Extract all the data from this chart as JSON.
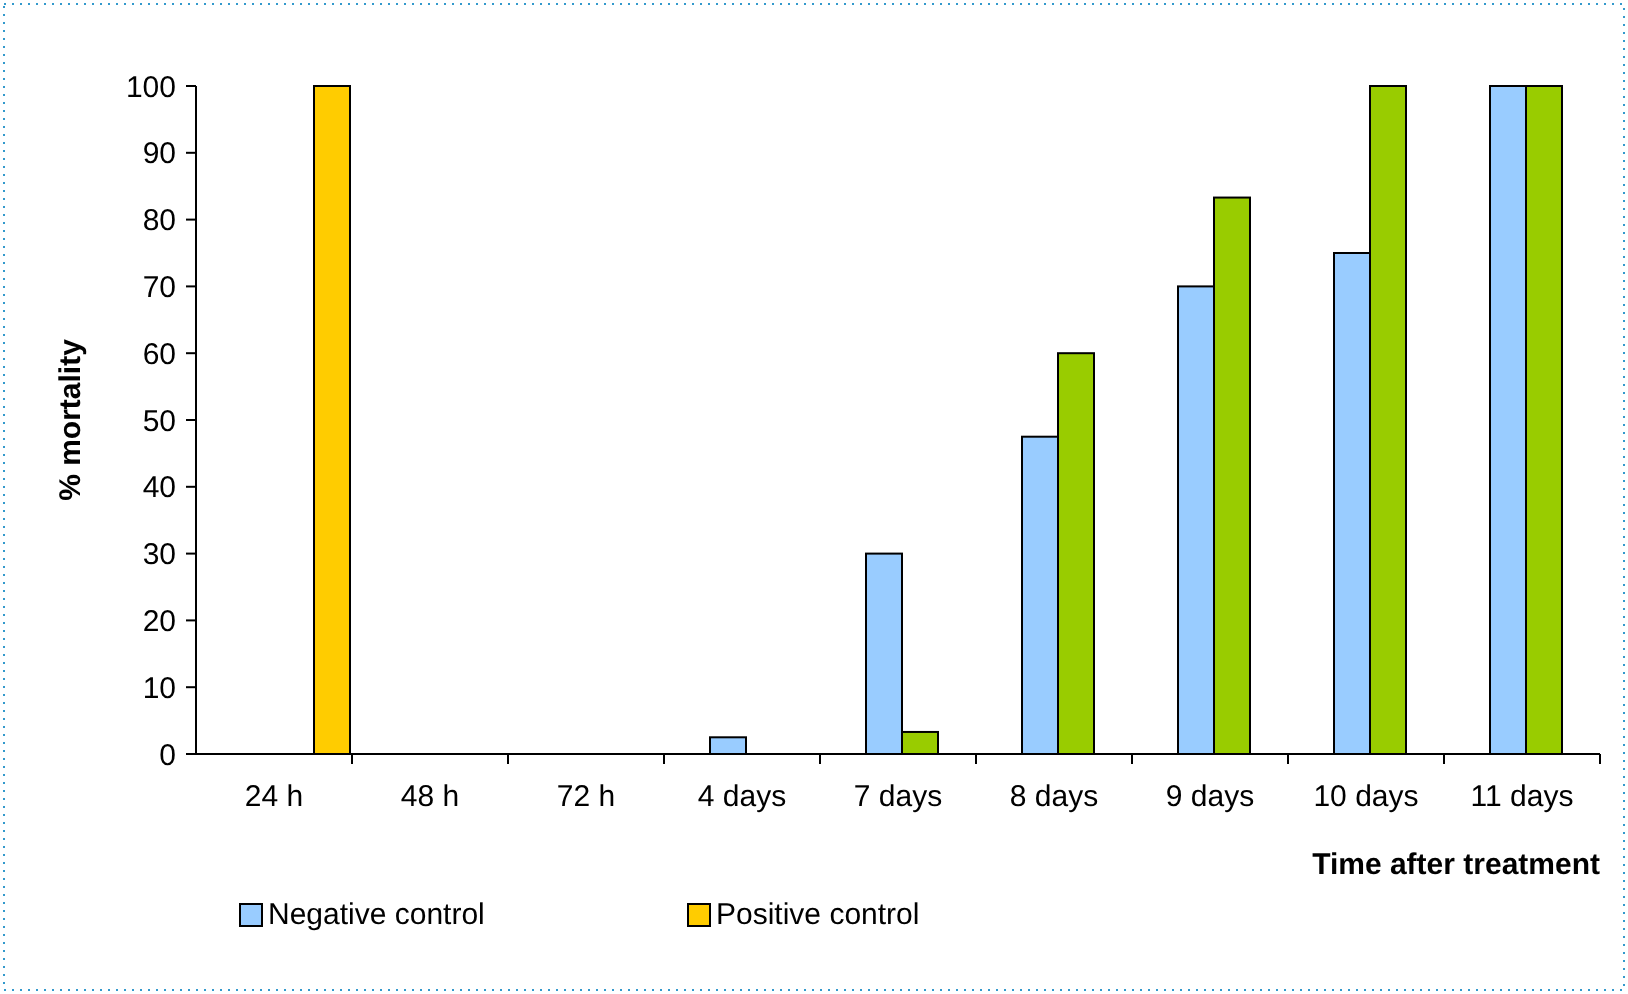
{
  "chart_data": {
    "type": "bar",
    "xlabel": "Time after treatment",
    "ylabel": "% mortality",
    "categories": [
      "24 h",
      "48 h",
      "72 h",
      "4 days",
      "7 days",
      "8 days",
      "9 days",
      "10 days",
      "11 days"
    ],
    "series": [
      {
        "name": "Negative control",
        "color": "#99ccff",
        "values": [
          0,
          0,
          0,
          2.5,
          30,
          47.5,
          70,
          75,
          100
        ]
      },
      {
        "color": "#99cc00",
        "values": [
          0,
          0,
          0,
          0,
          3.3,
          60,
          83.3,
          100,
          100
        ]
      },
      {
        "name": "Positive control",
        "color": "#ffcc00",
        "values": [
          100,
          null,
          null,
          null,
          null,
          null,
          null,
          null,
          null
        ]
      }
    ],
    "ylim": [
      0,
      100
    ],
    "yticks": [
      0,
      10,
      20,
      30,
      40,
      50,
      60,
      70,
      80,
      90,
      100
    ],
    "grid": false,
    "legend": "bottom"
  }
}
